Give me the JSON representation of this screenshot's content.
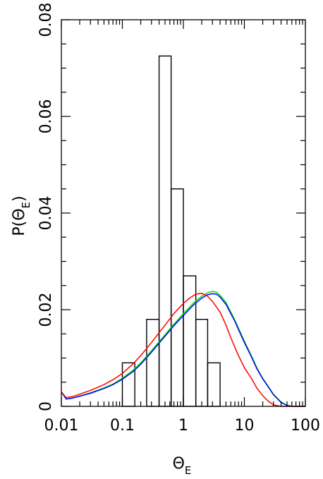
{
  "chart_data": {
    "type": "line",
    "title": "",
    "xlabel": {
      "main": "Θ",
      "sub": "E"
    },
    "ylabel": {
      "prefix": "P(Θ",
      "sub": "E",
      "suffix": ")"
    },
    "x_scale": "log",
    "xlim": [
      0.01,
      100
    ],
    "ylim": [
      0,
      0.08
    ],
    "x_ticks": [
      0.01,
      0.1,
      1,
      10,
      100
    ],
    "x_tick_labels": [
      "0.01",
      "0.1",
      "1",
      "10",
      "100"
    ],
    "y_ticks": [
      0,
      0.02,
      0.04,
      0.06,
      0.08
    ],
    "y_tick_labels": [
      "0",
      "0.02",
      "0.04",
      "0.06",
      "0.08"
    ],
    "grid": false,
    "histogram": {
      "color": "#000000",
      "bins": [
        {
          "x0": 0.1,
          "x1": 0.16,
          "value": 0.009
        },
        {
          "x0": 0.16,
          "x1": 0.25,
          "value": 0.0
        },
        {
          "x0": 0.25,
          "x1": 0.4,
          "value": 0.018
        },
        {
          "x0": 0.4,
          "x1": 0.63,
          "value": 0.0725
        },
        {
          "x0": 0.63,
          "x1": 1.0,
          "value": 0.045
        },
        {
          "x0": 1.0,
          "x1": 1.6,
          "value": 0.027
        },
        {
          "x0": 1.6,
          "x1": 2.5,
          "value": 0.018
        },
        {
          "x0": 2.5,
          "x1": 4.0,
          "value": 0.009
        }
      ]
    },
    "series": [
      {
        "color": "#00dd00",
        "points": [
          [
            0.01,
            0.003
          ],
          [
            0.012,
            0.0015
          ],
          [
            0.015,
            0.0017
          ],
          [
            0.02,
            0.0021
          ],
          [
            0.03,
            0.0028
          ],
          [
            0.05,
            0.0038
          ],
          [
            0.07,
            0.0046
          ],
          [
            0.1,
            0.0058
          ],
          [
            0.15,
            0.0075
          ],
          [
            0.2,
            0.009
          ],
          [
            0.3,
            0.0115
          ],
          [
            0.5,
            0.0148
          ],
          [
            0.7,
            0.017
          ],
          [
            1.0,
            0.0192
          ],
          [
            1.5,
            0.0215
          ],
          [
            2.0,
            0.0228
          ],
          [
            2.5,
            0.0235
          ],
          [
            3.0,
            0.0238
          ],
          [
            3.5,
            0.0236
          ],
          [
            4.0,
            0.023
          ],
          [
            5.0,
            0.0215
          ],
          [
            6.0,
            0.0195
          ],
          [
            7.0,
            0.0178
          ],
          [
            8.0,
            0.0162
          ],
          [
            10.0,
            0.0135
          ],
          [
            13.0,
            0.0105
          ],
          [
            16.0,
            0.008
          ],
          [
            20.0,
            0.0058
          ],
          [
            25.0,
            0.004
          ],
          [
            30.0,
            0.0025
          ],
          [
            40.0,
            0.0009
          ],
          [
            50.0,
            0.0002
          ],
          [
            60.0,
            0.0
          ],
          [
            100.0,
            0.0
          ]
        ]
      },
      {
        "color": "#0000ff",
        "points": [
          [
            0.01,
            0.003
          ],
          [
            0.012,
            0.0015
          ],
          [
            0.015,
            0.0017
          ],
          [
            0.02,
            0.0021
          ],
          [
            0.03,
            0.0027
          ],
          [
            0.05,
            0.0037
          ],
          [
            0.07,
            0.0045
          ],
          [
            0.1,
            0.0056
          ],
          [
            0.15,
            0.0072
          ],
          [
            0.2,
            0.0087
          ],
          [
            0.3,
            0.0112
          ],
          [
            0.5,
            0.0145
          ],
          [
            0.7,
            0.0167
          ],
          [
            1.0,
            0.0188
          ],
          [
            1.5,
            0.0211
          ],
          [
            2.0,
            0.0224
          ],
          [
            2.5,
            0.0231
          ],
          [
            3.0,
            0.0233
          ],
          [
            3.5,
            0.0232
          ],
          [
            4.0,
            0.0226
          ],
          [
            5.0,
            0.0211
          ],
          [
            6.0,
            0.0192
          ],
          [
            7.0,
            0.0176
          ],
          [
            8.0,
            0.0159
          ],
          [
            10.0,
            0.0132
          ],
          [
            13.0,
            0.0103
          ],
          [
            16.0,
            0.0078
          ],
          [
            20.0,
            0.0057
          ],
          [
            25.0,
            0.0039
          ],
          [
            30.0,
            0.0024
          ],
          [
            40.0,
            0.0008
          ],
          [
            50.0,
            0.0002
          ],
          [
            60.0,
            0.0
          ],
          [
            100.0,
            0.0
          ]
        ]
      },
      {
        "color": "#ff0000",
        "points": [
          [
            0.01,
            0.003
          ],
          [
            0.012,
            0.0018
          ],
          [
            0.015,
            0.002
          ],
          [
            0.02,
            0.0025
          ],
          [
            0.03,
            0.0033
          ],
          [
            0.05,
            0.0045
          ],
          [
            0.07,
            0.0055
          ],
          [
            0.1,
            0.0068
          ],
          [
            0.15,
            0.0088
          ],
          [
            0.2,
            0.0105
          ],
          [
            0.3,
            0.0132
          ],
          [
            0.5,
            0.0168
          ],
          [
            0.7,
            0.0192
          ],
          [
            1.0,
            0.0213
          ],
          [
            1.3,
            0.0225
          ],
          [
            1.6,
            0.0232
          ],
          [
            2.0,
            0.0234
          ],
          [
            2.5,
            0.0228
          ],
          [
            3.0,
            0.0217
          ],
          [
            4.0,
            0.0195
          ],
          [
            5.0,
            0.0168
          ],
          [
            6.0,
            0.0142
          ],
          [
            7.0,
            0.0122
          ],
          [
            8.0,
            0.0105
          ],
          [
            10.0,
            0.008
          ],
          [
            13.0,
            0.0058
          ],
          [
            16.0,
            0.0038
          ],
          [
            20.0,
            0.0022
          ],
          [
            25.0,
            0.001
          ],
          [
            30.0,
            0.0003
          ],
          [
            40.0,
            0.0
          ],
          [
            100.0,
            0.0
          ]
        ]
      }
    ]
  }
}
